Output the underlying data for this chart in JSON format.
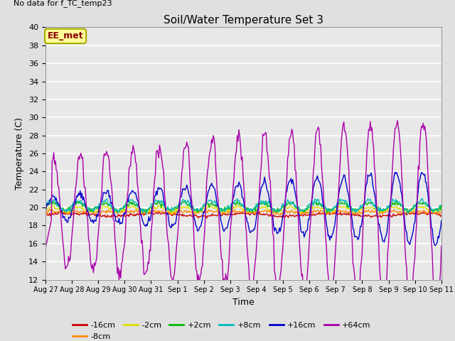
{
  "title": "Soil/Water Temperature Set 3",
  "xlabel": "Time",
  "ylabel": "Temperature (C)",
  "no_data_text": "No data for f_TC_temp23",
  "ee_met_label": "EE_met",
  "ylim": [
    12,
    40
  ],
  "yticks": [
    12,
    14,
    16,
    18,
    20,
    22,
    24,
    26,
    28,
    30,
    32,
    34,
    36,
    38,
    40
  ],
  "bg_color": "#e0e0e0",
  "plot_bg_color": "#e8e8e8",
  "grid_color": "#ffffff",
  "lines": {
    "-16cm": {
      "color": "#cc0000"
    },
    "-8cm": {
      "color": "#ff8800"
    },
    "-2cm": {
      "color": "#dddd00"
    },
    "+2cm": {
      "color": "#00bb00"
    },
    "+8cm": {
      "color": "#00bbbb"
    },
    "+16cm": {
      "color": "#0000cc"
    },
    "+64cm": {
      "color": "#aa00aa"
    }
  },
  "x_tick_labels": [
    "Aug 27",
    "Aug 28",
    "Aug 29",
    "Aug 30",
    "Aug 31",
    "Sep 1",
    "Sep 2",
    "Sep 3",
    "Sep 4",
    "Sep 5",
    "Sep 6",
    "Sep 7",
    "Sep 8",
    "Sep 9",
    "Sep 10",
    "Sep 11"
  ],
  "n_points": 480,
  "days": 15
}
